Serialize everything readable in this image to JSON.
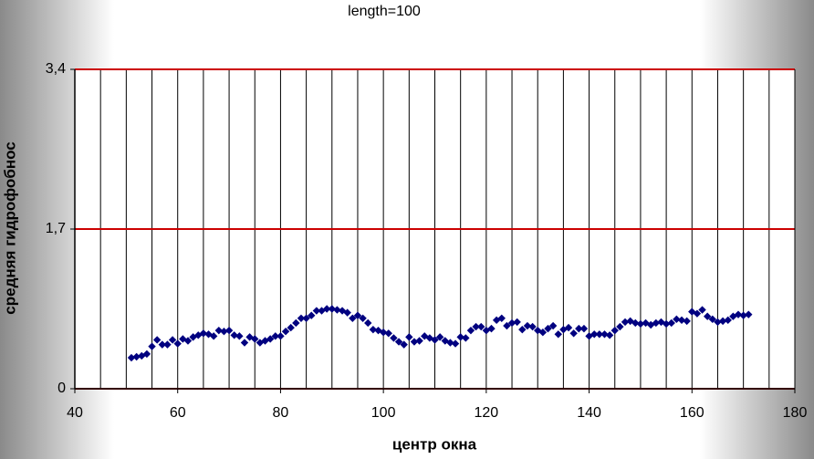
{
  "chart_data": {
    "type": "scatter",
    "title": "length=100",
    "xlabel": "центр окна",
    "ylabel": "средняя гидрофобнос",
    "xlim": [
      40,
      180
    ],
    "ylim": [
      0,
      3.4
    ],
    "xticks": [
      40,
      60,
      80,
      100,
      120,
      140,
      160,
      180
    ],
    "xgrid": [
      45,
      50,
      55,
      60,
      65,
      70,
      75,
      80,
      85,
      90,
      95,
      100,
      105,
      110,
      115,
      120,
      125,
      130,
      135,
      140,
      145,
      150,
      155,
      160,
      165,
      170,
      175
    ],
    "yticks": [
      0,
      {
        "value": 1.7,
        "label": "1,7"
      },
      {
        "value": 3.4,
        "label": "3,4"
      }
    ],
    "ygrid_color": "#cc0000",
    "xgrid_color": "#000000",
    "series": [
      {
        "color": "#000080",
        "x": [
          51,
          52,
          53,
          54,
          55,
          56,
          57,
          58,
          59,
          60,
          61,
          62,
          63,
          64,
          65,
          66,
          67,
          68,
          69,
          70,
          71,
          72,
          73,
          74,
          75,
          76,
          77,
          78,
          79,
          80,
          81,
          82,
          83,
          84,
          85,
          86,
          87,
          88,
          89,
          90,
          91,
          92,
          93,
          94,
          95,
          96,
          97,
          98,
          99,
          100,
          101,
          102,
          103,
          104,
          105,
          106,
          107,
          108,
          109,
          110,
          111,
          112,
          113,
          114,
          115,
          116,
          117,
          118,
          119,
          120,
          121,
          122,
          123,
          124,
          125,
          126,
          127,
          128,
          129,
          130,
          131,
          132,
          133,
          134,
          135,
          136,
          137,
          138,
          139,
          140,
          141,
          142,
          143,
          144,
          145,
          146,
          147,
          148,
          149,
          150,
          151,
          152,
          153,
          154,
          155,
          156,
          157,
          158,
          159,
          160,
          161,
          162,
          163,
          164,
          165,
          166,
          167,
          168,
          169,
          170,
          171
        ],
        "values": [
          0.33,
          0.34,
          0.35,
          0.37,
          0.45,
          0.52,
          0.47,
          0.47,
          0.52,
          0.48,
          0.53,
          0.51,
          0.55,
          0.57,
          0.59,
          0.58,
          0.56,
          0.62,
          0.61,
          0.62,
          0.57,
          0.56,
          0.49,
          0.55,
          0.53,
          0.49,
          0.51,
          0.53,
          0.56,
          0.56,
          0.61,
          0.65,
          0.7,
          0.75,
          0.75,
          0.78,
          0.83,
          0.83,
          0.85,
          0.85,
          0.84,
          0.83,
          0.81,
          0.75,
          0.78,
          0.75,
          0.7,
          0.63,
          0.62,
          0.6,
          0.59,
          0.54,
          0.5,
          0.47,
          0.55,
          0.5,
          0.51,
          0.56,
          0.54,
          0.52,
          0.55,
          0.51,
          0.49,
          0.48,
          0.55,
          0.54,
          0.62,
          0.66,
          0.66,
          0.62,
          0.64,
          0.73,
          0.75,
          0.67,
          0.7,
          0.71,
          0.63,
          0.67,
          0.66,
          0.62,
          0.6,
          0.64,
          0.67,
          0.58,
          0.63,
          0.65,
          0.59,
          0.64,
          0.64,
          0.56,
          0.58,
          0.58,
          0.58,
          0.57,
          0.62,
          0.66,
          0.71,
          0.72,
          0.7,
          0.69,
          0.7,
          0.68,
          0.7,
          0.71,
          0.69,
          0.7,
          0.74,
          0.73,
          0.72,
          0.82,
          0.8,
          0.84,
          0.77,
          0.74,
          0.71,
          0.72,
          0.73,
          0.77,
          0.79,
          0.78,
          0.79
        ]
      }
    ]
  }
}
